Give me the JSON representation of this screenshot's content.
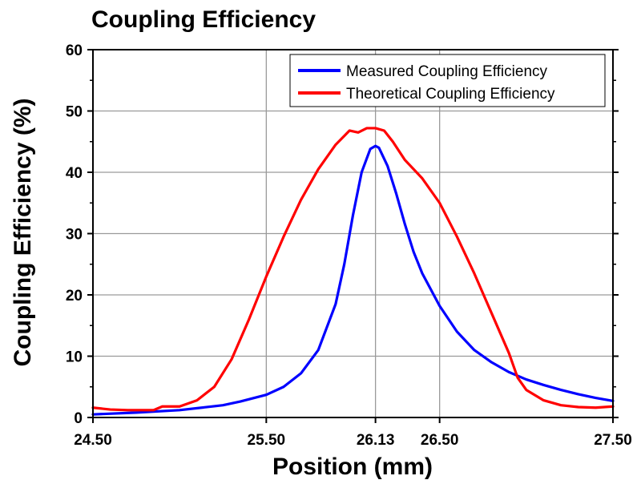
{
  "chart_data": {
    "type": "line",
    "title": "Coupling Efficiency",
    "xlabel": "Position (mm)",
    "ylabel": "Coupling Efficiency (%)",
    "xlim": [
      24.5,
      27.5
    ],
    "ylim": [
      0,
      60
    ],
    "xticks": [
      24.5,
      25.5,
      26.13,
      26.5,
      27.5
    ],
    "xtick_labels": [
      "24.50",
      "25.50",
      "26.13",
      "26.50",
      "27.50"
    ],
    "yticks": [
      0,
      10,
      20,
      30,
      40,
      50,
      60
    ],
    "ytick_labels": [
      "0",
      "10",
      "20",
      "30",
      "40",
      "50",
      "60"
    ],
    "grid": true,
    "legend_position": "top-right",
    "series": [
      {
        "name": "Measured Coupling Efficiency",
        "color": "#0000ff",
        "x": [
          24.5,
          24.75,
          25.0,
          25.25,
          25.35,
          25.5,
          25.6,
          25.7,
          25.8,
          25.9,
          25.95,
          26.0,
          26.05,
          26.1,
          26.13,
          26.15,
          26.2,
          26.25,
          26.3,
          26.35,
          26.4,
          26.5,
          26.6,
          26.7,
          26.8,
          26.9,
          27.0,
          27.1,
          27.2,
          27.3,
          27.4,
          27.5
        ],
        "y": [
          0.5,
          0.8,
          1.2,
          2.0,
          2.6,
          3.7,
          5.0,
          7.2,
          11.0,
          18.5,
          25.0,
          33.0,
          40.0,
          43.8,
          44.3,
          44.0,
          41.0,
          36.5,
          31.5,
          27.0,
          23.5,
          18.2,
          14.0,
          11.0,
          9.0,
          7.4,
          6.2,
          5.3,
          4.5,
          3.8,
          3.2,
          2.7
        ]
      },
      {
        "name": "Theoretical Coupling Efficiency",
        "color": "#ff0000",
        "x": [
          24.5,
          24.6,
          24.7,
          24.85,
          24.9,
          25.0,
          25.1,
          25.2,
          25.3,
          25.4,
          25.5,
          25.6,
          25.7,
          25.8,
          25.9,
          25.98,
          26.03,
          26.08,
          26.13,
          26.18,
          26.23,
          26.3,
          26.4,
          26.5,
          26.6,
          26.7,
          26.8,
          26.9,
          26.95,
          27.0,
          27.1,
          27.2,
          27.3,
          27.4,
          27.5
        ],
        "y": [
          1.6,
          1.3,
          1.2,
          1.2,
          1.8,
          1.8,
          2.8,
          5.0,
          9.5,
          16.0,
          23.0,
          29.5,
          35.5,
          40.5,
          44.5,
          46.8,
          46.5,
          47.2,
          47.2,
          46.8,
          45.0,
          42.0,
          39.0,
          35.0,
          29.5,
          23.5,
          17.0,
          10.5,
          6.5,
          4.5,
          2.8,
          2.0,
          1.7,
          1.6,
          1.8
        ]
      }
    ]
  }
}
